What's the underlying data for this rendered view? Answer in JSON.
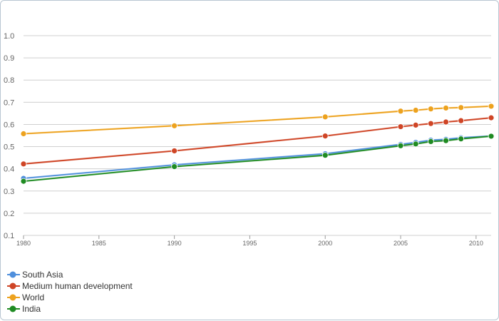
{
  "chart_data": {
    "type": "line",
    "title": "",
    "xlabel": "",
    "ylabel": "",
    "xlim": [
      1980,
      2011
    ],
    "ylim": [
      0.1,
      1.0
    ],
    "grid": true,
    "legend_position": "bottom-left",
    "x_ticks": [
      "1980",
      "1985",
      "1990",
      "1995",
      "2000",
      "2005",
      "2010"
    ],
    "y_ticks": [
      "0.1",
      "0.2",
      "0.3",
      "0.4",
      "0.5",
      "0.6",
      "0.7",
      "0.8",
      "0.9",
      "1.0"
    ],
    "x": [
      1980,
      1990,
      2000,
      2005,
      2006,
      2007,
      2008,
      2009,
      2011
    ],
    "series": [
      {
        "name": "South Asia",
        "color": "#4f8fdc",
        "values": [
          0.357,
          0.418,
          0.468,
          0.51,
          0.519,
          0.529,
          0.533,
          0.54,
          0.548
        ]
      },
      {
        "name": "Medium human development",
        "color": "#cf4526",
        "values": [
          0.422,
          0.481,
          0.548,
          0.59,
          0.597,
          0.604,
          0.611,
          0.617,
          0.63
        ]
      },
      {
        "name": "World",
        "color": "#eda21e",
        "values": [
          0.558,
          0.594,
          0.634,
          0.66,
          0.664,
          0.67,
          0.674,
          0.676,
          0.682
        ]
      },
      {
        "name": "India",
        "color": "#1f8b22",
        "values": [
          0.344,
          0.41,
          0.461,
          0.504,
          0.512,
          0.523,
          0.527,
          0.535,
          0.547
        ]
      }
    ]
  }
}
